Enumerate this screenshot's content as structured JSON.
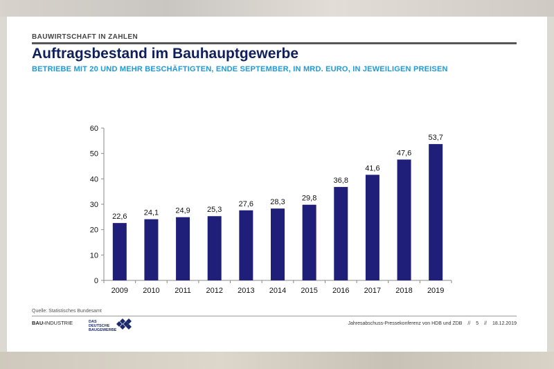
{
  "header": {
    "section_label": "BAUWIRTSCHAFT IN ZAHLEN",
    "title": "Auftragsbestand im Bauhauptgewerbe",
    "subtitle": "BETRIEBE MIT 20 UND MEHR BESCHÄFTIGTEN, ENDE SEPTEMBER, IN MRD. EURO, IN JEWEILIGEN PREISEN"
  },
  "chart_data": {
    "type": "bar",
    "categories": [
      "2009",
      "2010",
      "2011",
      "2012",
      "2013",
      "2014",
      "2015",
      "2016",
      "2017",
      "2018",
      "2019"
    ],
    "values": [
      22.6,
      24.1,
      24.9,
      25.3,
      27.6,
      28.3,
      29.8,
      36.8,
      41.6,
      47.6,
      53.7
    ],
    "value_labels": [
      "22,6",
      "24,1",
      "24,9",
      "25,3",
      "27,6",
      "28,3",
      "29,8",
      "36,8",
      "41,6",
      "47,6",
      "53,7"
    ],
    "ylim": [
      0,
      60
    ],
    "yticks": [
      0,
      10,
      20,
      30,
      40,
      50,
      60
    ],
    "grid": false,
    "bar_color": "#1f1f7a"
  },
  "footer": {
    "source": "Quelle: Statistisches Bundesamt",
    "logo_left_bold": "BAU",
    "logo_left_rest": "INDUSTRIE",
    "logo_right_line1": "DAS DEUTSCHE",
    "logo_right_line2": "BAUGEWERBE",
    "event": "Jahresabschuss-Pressekonferenz von HDB und ZDB",
    "sep1": "//",
    "page": "5",
    "sep2": "//",
    "date": "18.12.2019"
  }
}
